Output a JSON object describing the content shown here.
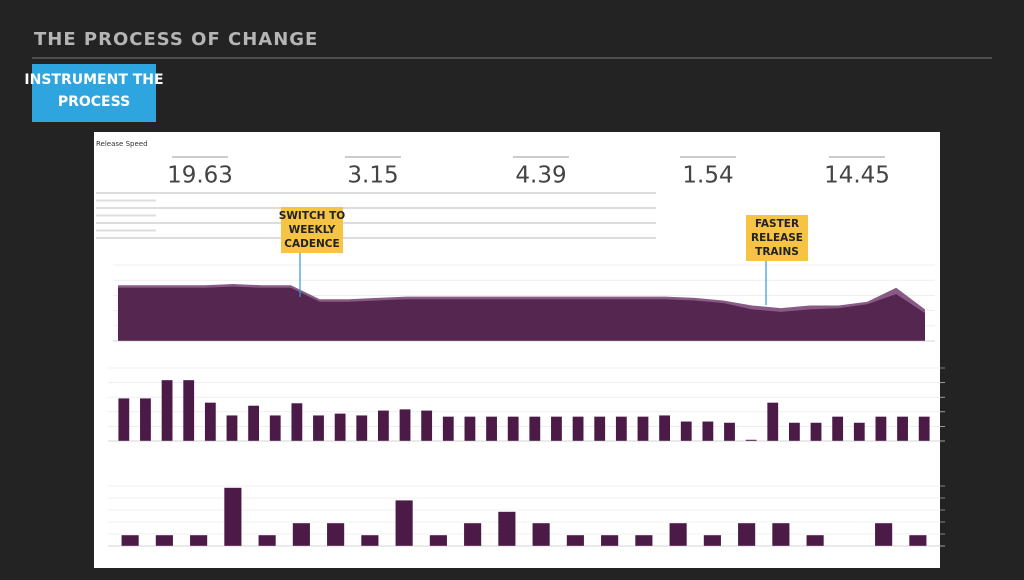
{
  "header": {
    "title": "THE PROCESS OF CHANGE",
    "badge": [
      "INSTRUMENT THE",
      "PROCESS"
    ]
  },
  "dashboard": {
    "title": "Release Speed",
    "metrics": [
      19.63,
      3.15,
      4.39,
      1.54,
      14.45
    ],
    "callouts": [
      [
        "SWITCH TO",
        "WEEKLY",
        "CADENCE"
      ],
      [
        "FASTER",
        "RELEASE",
        "TRAINS"
      ]
    ],
    "charts": [
      {
        "type": "area",
        "ylim": [
          0,
          30
        ],
        "color": "#8a5a86",
        "color2": "#55264f",
        "top": [
          22,
          22,
          22,
          22,
          22.5,
          22,
          22,
          16.5,
          16.5,
          17,
          17.5,
          17.5,
          17.5,
          17.5,
          17.5,
          17.5,
          17.5,
          17.5,
          17.5,
          17.5,
          17,
          16,
          14,
          13,
          14,
          14,
          15.5,
          21,
          12.5
        ],
        "bottom": [
          21,
          21,
          21,
          21,
          21.5,
          21,
          21,
          15.5,
          15.5,
          16,
          16.5,
          16.5,
          16.5,
          16.5,
          16.5,
          16.5,
          16.5,
          16.5,
          16.5,
          16.5,
          16,
          15,
          12.5,
          11.5,
          12.5,
          13,
          14.5,
          18.5,
          11
        ]
      },
      {
        "type": "bar",
        "ylim": [
          0,
          12
        ],
        "color": "#4b1a47",
        "values": [
          7,
          7,
          10,
          10,
          6.3,
          4.2,
          5.8,
          4.2,
          6.2,
          4.2,
          4.5,
          4.2,
          5,
          5.2,
          5,
          4,
          4,
          4,
          4,
          4,
          4,
          4,
          4,
          4,
          4,
          4.2,
          3.2,
          3.2,
          3,
          0.2,
          6.3,
          3,
          3,
          4,
          3,
          4,
          4,
          4
        ]
      },
      {
        "type": "bar",
        "ylim": [
          0,
          10
        ],
        "color": "#4b1a47",
        "values": [
          1.8,
          1.8,
          1.8,
          9.7,
          1.8,
          3.8,
          3.8,
          1.8,
          7.6,
          1.8,
          3.8,
          5.7,
          3.8,
          1.8,
          1.8,
          1.8,
          3.8,
          1.8,
          3.8,
          3.8,
          1.8,
          0,
          3.8,
          1.8
        ]
      }
    ]
  }
}
